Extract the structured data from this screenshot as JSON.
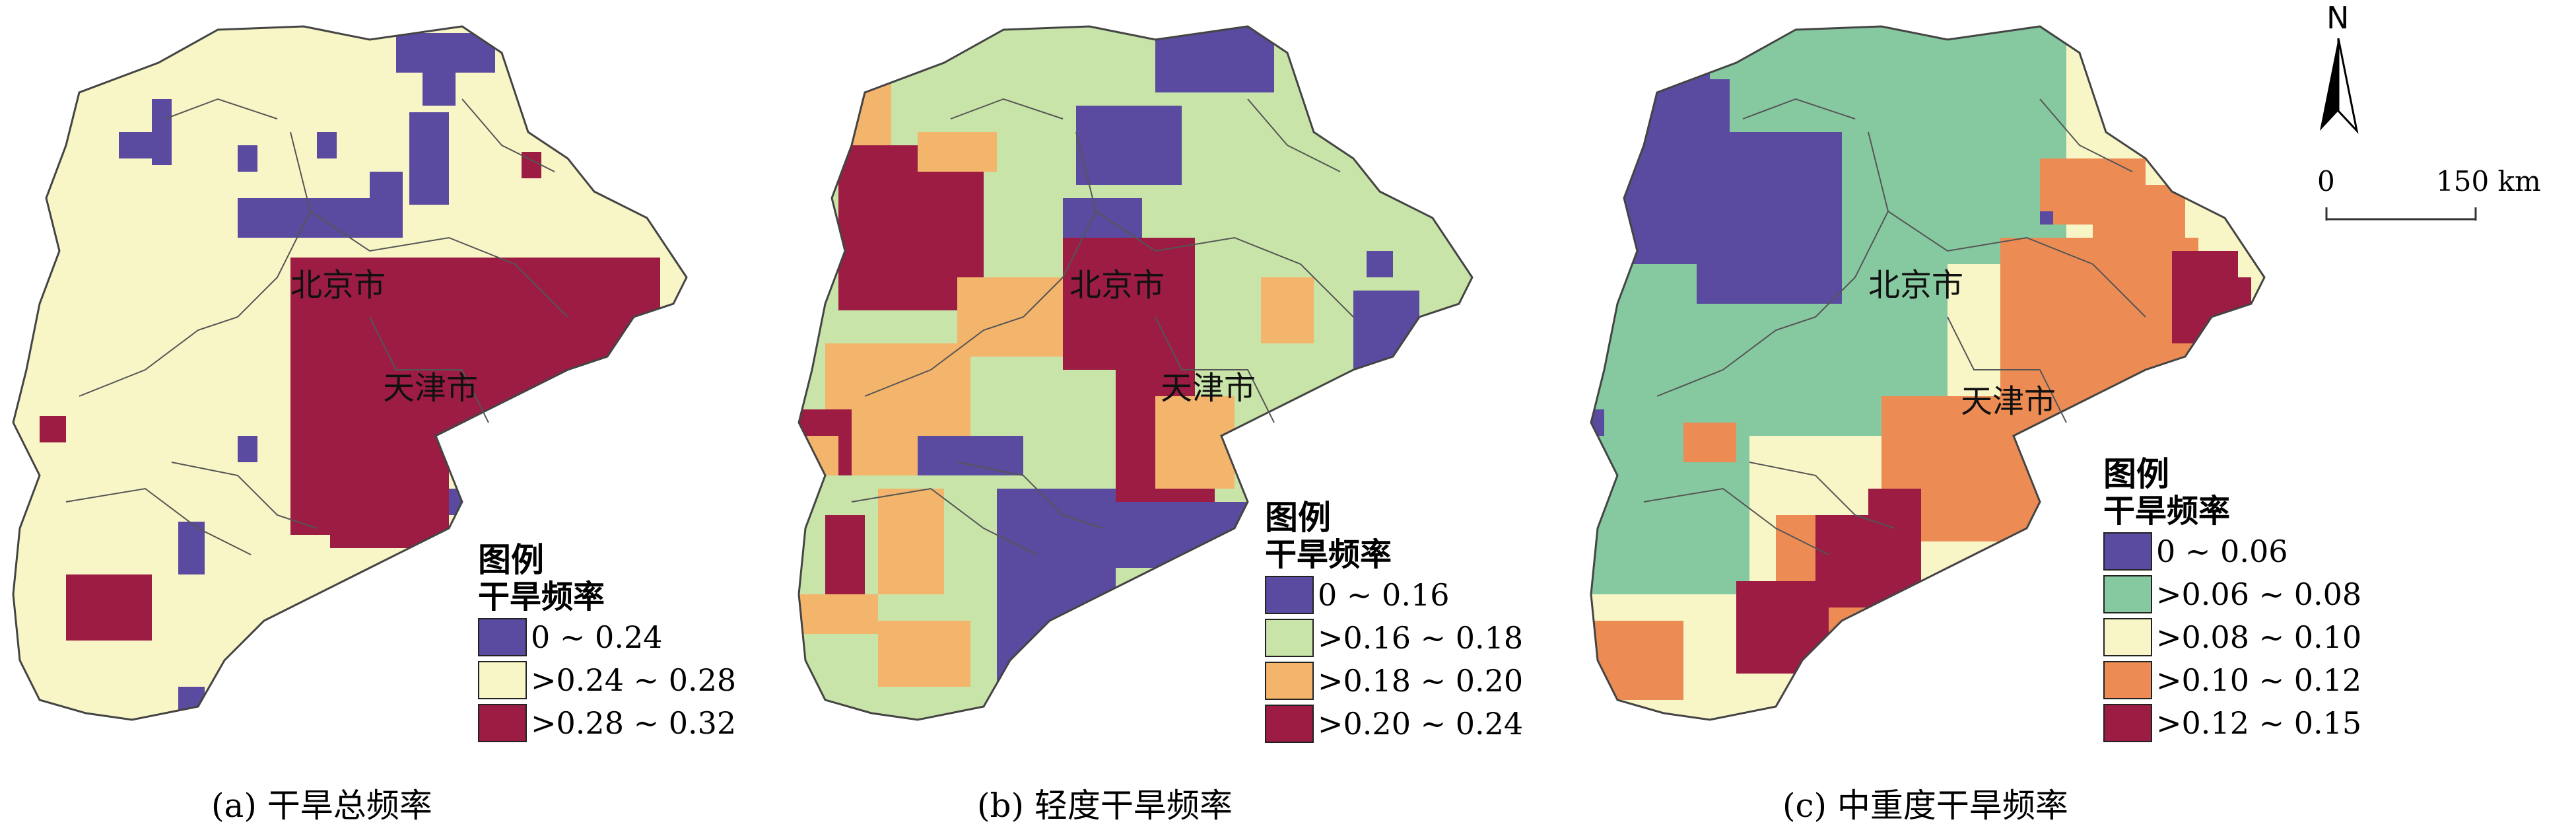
{
  "north_label": "N",
  "scale": {
    "zero": "0",
    "distance": "150 km"
  },
  "panels": [
    {
      "caption": "(a) 干旱总频率",
      "legend_title": "图例",
      "legend_subtitle": "干旱频率",
      "classes": [
        {
          "label": "0 ~ 0.24",
          "color": "#5a4ba0"
        },
        {
          "label": ">0.24 ~ 0.28",
          "color": "#f8f6c6"
        },
        {
          "label": ">0.28 ~ 0.32",
          "color": "#9c1c44"
        }
      ],
      "cities": {
        "beijing": "北京市",
        "tianjin": "天津市"
      }
    },
    {
      "caption": "(b) 轻度干旱频率",
      "legend_title": "图例",
      "legend_subtitle": "干旱频率",
      "classes": [
        {
          "label": "0 ~ 0.16",
          "color": "#5a4ba0"
        },
        {
          "label": ">0.16 ~ 0.18",
          "color": "#c8e4a8"
        },
        {
          "label": ">0.18 ~ 0.20",
          "color": "#f3b46c"
        },
        {
          "label": ">0.20 ~ 0.24",
          "color": "#9c1c44"
        }
      ],
      "cities": {
        "beijing": "北京市",
        "tianjin": "天津市"
      }
    },
    {
      "caption": "(c) 中重度干旱频率",
      "legend_title": "图例",
      "legend_subtitle": "干旱频率",
      "classes": [
        {
          "label": "0 ~ 0.06",
          "color": "#5a4ba0"
        },
        {
          "label": ">0.06 ~ 0.08",
          "color": "#86c8a0"
        },
        {
          "label": ">0.08 ~ 0.10",
          "color": "#f8f6c6"
        },
        {
          "label": ">0.10 ~ 0.12",
          "color": "#ec8c54"
        },
        {
          "label": ">0.12 ~ 0.15",
          "color": "#9c1c44"
        }
      ],
      "cities": {
        "beijing": "北京市",
        "tianjin": "天津市"
      }
    }
  ]
}
